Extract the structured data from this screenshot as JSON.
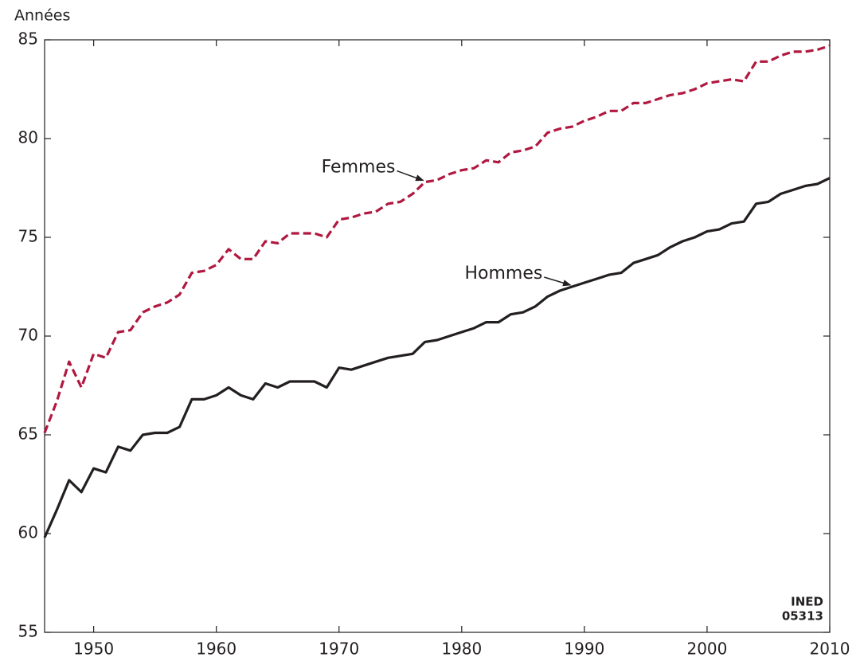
{
  "chart_data": {
    "type": "line",
    "y_label": "Années",
    "source": [
      "INED",
      "05313"
    ],
    "x": [
      1946,
      1947,
      1948,
      1949,
      1950,
      1951,
      1952,
      1953,
      1954,
      1955,
      1956,
      1957,
      1958,
      1959,
      1960,
      1961,
      1962,
      1963,
      1964,
      1965,
      1966,
      1967,
      1968,
      1969,
      1970,
      1971,
      1972,
      1973,
      1974,
      1975,
      1976,
      1977,
      1978,
      1979,
      1980,
      1981,
      1982,
      1983,
      1984,
      1985,
      1986,
      1987,
      1988,
      1989,
      1990,
      1991,
      1992,
      1993,
      1994,
      1995,
      1996,
      1997,
      1998,
      1999,
      2000,
      2001,
      2002,
      2003,
      2004,
      2005,
      2006,
      2007,
      2008,
      2009,
      2010
    ],
    "series": [
      {
        "name": "Femmes",
        "color": "#b0183f",
        "dash": "dashed",
        "values": [
          65.1,
          66.7,
          68.7,
          67.4,
          69.1,
          68.9,
          70.2,
          70.3,
          71.2,
          71.5,
          71.7,
          72.1,
          73.2,
          73.3,
          73.6,
          74.4,
          73.9,
          73.9,
          74.8,
          74.7,
          75.2,
          75.2,
          75.2,
          75.0,
          75.9,
          76.0,
          76.2,
          76.3,
          76.7,
          76.8,
          77.2,
          77.8,
          77.9,
          78.2,
          78.4,
          78.5,
          78.9,
          78.8,
          79.3,
          79.4,
          79.6,
          80.3,
          80.5,
          80.6,
          80.9,
          81.1,
          81.4,
          81.4,
          81.8,
          81.8,
          82.0,
          82.2,
          82.3,
          82.5,
          82.8,
          82.9,
          83.0,
          82.9,
          83.9,
          83.9,
          84.2,
          84.4,
          84.4,
          84.5,
          84.7
        ]
      },
      {
        "name": "Hommes",
        "color": "#231f20",
        "dash": "solid",
        "values": [
          59.8,
          61.2,
          62.7,
          62.1,
          63.3,
          63.1,
          64.4,
          64.2,
          65.0,
          65.1,
          65.1,
          65.4,
          66.8,
          66.8,
          67.0,
          67.4,
          67.0,
          66.8,
          67.6,
          67.4,
          67.7,
          67.7,
          67.7,
          67.4,
          68.4,
          68.3,
          68.5,
          68.7,
          68.9,
          69.0,
          69.1,
          69.7,
          69.8,
          70.0,
          70.2,
          70.4,
          70.7,
          70.7,
          71.1,
          71.2,
          71.5,
          72.0,
          72.3,
          72.5,
          72.7,
          72.9,
          73.1,
          73.2,
          73.7,
          73.9,
          74.1,
          74.5,
          74.8,
          75.0,
          75.3,
          75.4,
          75.7,
          75.8,
          76.7,
          76.8,
          77.2,
          77.4,
          77.6,
          77.7,
          78.0
        ]
      }
    ],
    "xlim": [
      1946,
      2010
    ],
    "xticks": [
      1950,
      1960,
      1970,
      1980,
      1990,
      2000,
      2010
    ],
    "ylim": [
      55,
      85
    ],
    "yticks": [
      55,
      60,
      65,
      70,
      75,
      80,
      85
    ],
    "grid": false
  }
}
